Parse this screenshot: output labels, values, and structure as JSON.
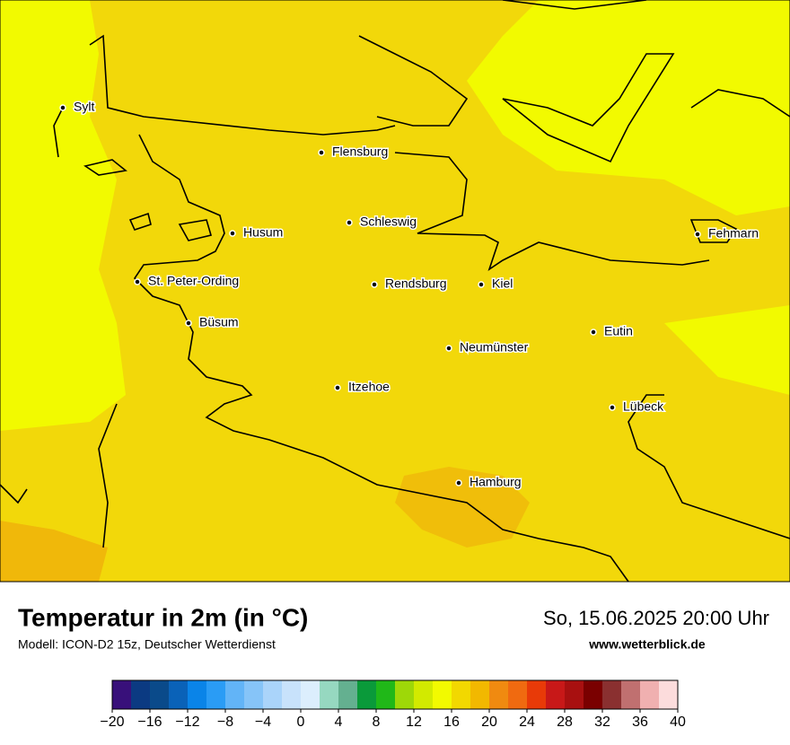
{
  "header": {
    "title": "Temperatur in 2m (in °C)",
    "subtitle": "Modell: ICON-D2 15z, Deutscher Wetterdienst",
    "date": "So, 15.06.2025 20:00 Uhr",
    "website": "www.wetterblick.de"
  },
  "map": {
    "cities": [
      "Sylt",
      "Flensburg",
      "Schleswig",
      "Husum",
      "St. Peter-Ording",
      "Rendsburg",
      "Kiel",
      "Büsum",
      "Neumünster",
      "Eutin",
      "Itzehoe",
      "Lübeck",
      "Hamburg",
      "Fehmarn"
    ]
  },
  "colorbar": {
    "range": [
      -20,
      40
    ],
    "colors": [
      "#38107a",
      "#0b3a82",
      "#0a4a8a",
      "#0a62b8",
      "#0a84e8",
      "#2a9cf5",
      "#62b4f7",
      "#86c4f8",
      "#aad4fa",
      "#c8e2fb",
      "#dceefd",
      "#96d8c0",
      "#64b090",
      "#0a9a3a",
      "#20b818",
      "#9ed808",
      "#d2ea00",
      "#f2fa00",
      "#f2d800",
      "#f2b800",
      "#f08a10",
      "#f06a10",
      "#e83a08",
      "#c81818",
      "#a81010",
      "#7a0000",
      "#8a3030",
      "#c07070",
      "#f0b0b0",
      "#fcdcdc"
    ],
    "ticks": [
      {
        "value": -20,
        "label": "−20"
      },
      {
        "value": -16,
        "label": "−16"
      },
      {
        "value": -12,
        "label": "−12"
      },
      {
        "value": -8,
        "label": "−8"
      },
      {
        "value": -4,
        "label": "−4"
      },
      0,
      4,
      8,
      12,
      16,
      20,
      24,
      28,
      32,
      36,
      40
    ]
  }
}
